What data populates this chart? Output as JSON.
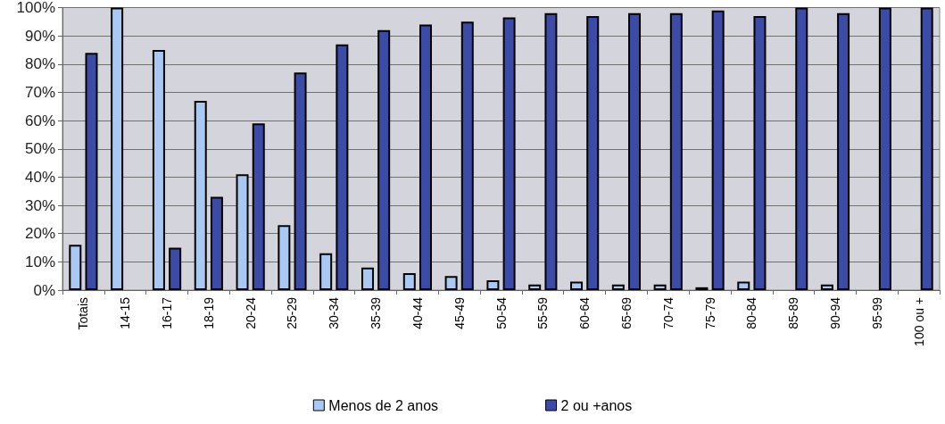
{
  "chart_data": {
    "type": "bar",
    "categories": [
      "Totais",
      "14-15",
      "16-17",
      "18-19",
      "20-24",
      "25-29",
      "30-34",
      "35-39",
      "40-44",
      "45-49",
      "50-54",
      "55-59",
      "60-64",
      "65-69",
      "70-74",
      "75-79",
      "80-84",
      "85-89",
      "90-94",
      "95-99",
      "100 ou +"
    ],
    "series": [
      {
        "name": "Menos de 2 anos",
        "color": "#a9c8f2",
        "values": [
          16,
          100,
          85,
          67,
          41,
          23,
          13,
          8,
          6,
          5,
          3.5,
          2,
          3,
          2,
          2,
          1,
          3,
          null,
          2,
          null,
          null
        ]
      },
      {
        "name": "2 ou +anos",
        "color": "#3b4ba6",
        "values": [
          84,
          null,
          15,
          33,
          59,
          77,
          87,
          92,
          94,
          95,
          96.5,
          98,
          97,
          98,
          98,
          99,
          97,
          100,
          98,
          100,
          100
        ]
      }
    ],
    "ylim": [
      0,
      100
    ],
    "yticks": [
      {
        "value": 0,
        "label": "0%"
      },
      {
        "value": 10,
        "label": "10%"
      },
      {
        "value": 20,
        "label": "20%"
      },
      {
        "value": 30,
        "label": "30%"
      },
      {
        "value": 40,
        "label": "40%"
      },
      {
        "value": 50,
        "label": "50%"
      },
      {
        "value": 60,
        "label": "60%"
      },
      {
        "value": 70,
        "label": "70%"
      },
      {
        "value": 80,
        "label": "80%"
      },
      {
        "value": 90,
        "label": "90%"
      },
      {
        "value": 100,
        "label": "100%"
      }
    ],
    "grid": "y",
    "legend": "bottom"
  }
}
